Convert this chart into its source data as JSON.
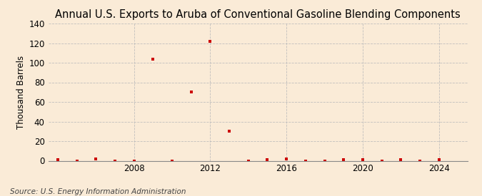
{
  "title": "Annual U.S. Exports to Aruba of Conventional Gasoline Blending Components",
  "ylabel": "Thousand Barrels",
  "source_text": "Source: U.S. Energy Information Administration",
  "background_color": "#faebd7",
  "plot_bg_color": "#faebd7",
  "marker_color": "#cc0000",
  "grid_color": "#bbbbbb",
  "spine_color": "#888888",
  "years": [
    2004,
    2005,
    2006,
    2007,
    2008,
    2009,
    2010,
    2011,
    2012,
    2013,
    2014,
    2015,
    2016,
    2017,
    2018,
    2019,
    2020,
    2021,
    2022,
    2023,
    2024
  ],
  "values": [
    1,
    0,
    2,
    0,
    0,
    104,
    0,
    70,
    122,
    30,
    0,
    1,
    2,
    0,
    0,
    1,
    1,
    0,
    1,
    0,
    1
  ],
  "xlim": [
    2003.5,
    2025.5
  ],
  "ylim": [
    0,
    140
  ],
  "yticks": [
    0,
    20,
    40,
    60,
    80,
    100,
    120,
    140
  ],
  "xticks": [
    2008,
    2012,
    2016,
    2020,
    2024
  ],
  "title_fontsize": 10.5,
  "label_fontsize": 8.5,
  "tick_fontsize": 8.5,
  "source_fontsize": 7.5
}
